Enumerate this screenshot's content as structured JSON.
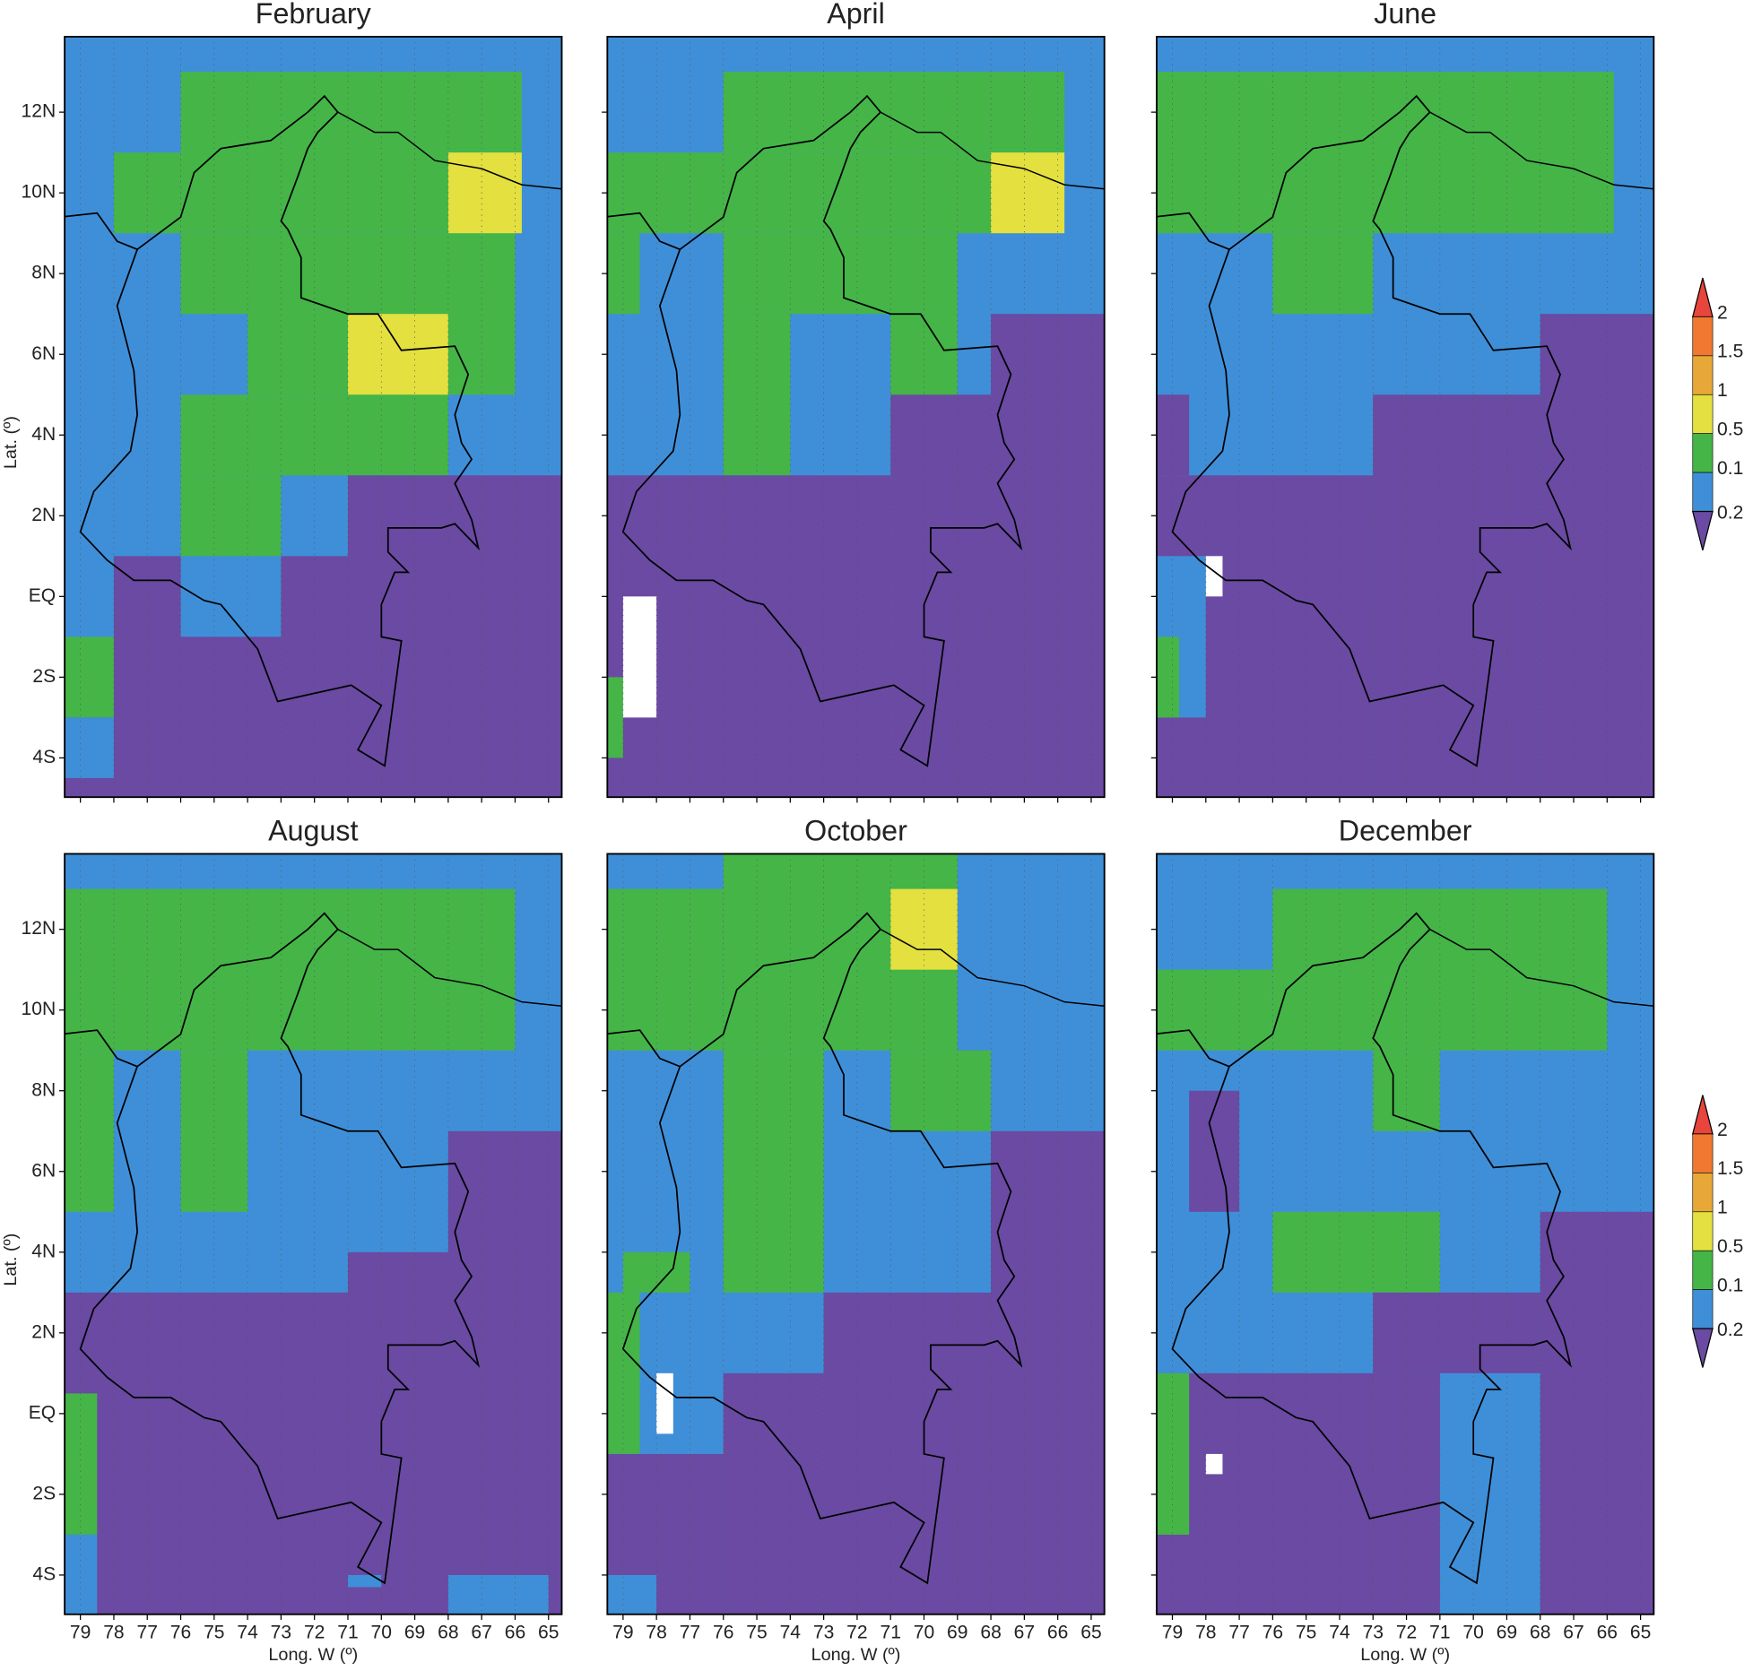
{
  "panels": [
    {
      "title": "February"
    },
    {
      "title": "April"
    },
    {
      "title": "June"
    },
    {
      "title": "August"
    },
    {
      "title": "October"
    },
    {
      "title": "December"
    }
  ],
  "lat_ticks": [
    "12N",
    "10N",
    "8N",
    "6N",
    "4N",
    "2N",
    "EQ",
    "2S",
    "4S"
  ],
  "lon_ticks": [
    "79",
    "78",
    "77",
    "76",
    "75",
    "74",
    "73",
    "72",
    "71",
    "70",
    "69",
    "68",
    "67",
    "66",
    "65"
  ],
  "y_label": "Lat. (º)",
  "x_label": "Long. W (º)",
  "colorbar": [
    "2",
    "1.5",
    "1",
    "0.5",
    "0.1",
    "0.2"
  ]
}
